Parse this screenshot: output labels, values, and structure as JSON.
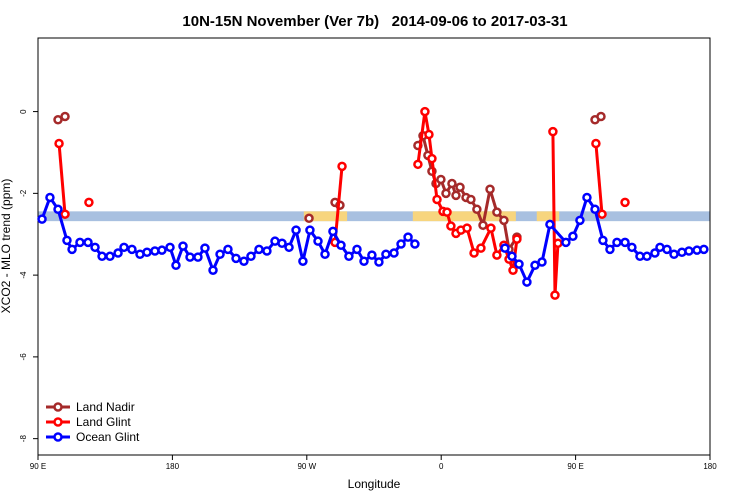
{
  "chart_data": {
    "type": "line",
    "title": "10N-15N November (Ver 7b)   2014-09-06 to 2017-03-31",
    "x_label": "Longitude",
    "y_label": "XCO2 - MLO trend (ppm)",
    "xlim": [
      90,
      540
    ],
    "xticks": [
      {
        "value": 90,
        "label": "90 E"
      },
      {
        "value": 180,
        "label": "180"
      },
      {
        "value": 270,
        "label": "90 W"
      },
      {
        "value": 360,
        "label": "0"
      },
      {
        "value": 450,
        "label": "90 E"
      },
      {
        "value": 540,
        "label": "180"
      }
    ],
    "ylim": [
      -8.4,
      1.8
    ],
    "yticks": [
      0,
      -2,
      -4,
      -6,
      -8
    ],
    "band": {
      "ylim": [
        -2.68,
        -2.44
      ],
      "color": "#a8c0e0",
      "highlight_color": "#f7d57e",
      "highlight_ranges": [
        [
          268,
          297
        ],
        [
          341,
          410
        ],
        [
          424,
          439
        ]
      ]
    },
    "legend": "lower left",
    "series": [
      {
        "name": "Land Nadir",
        "color": "#a52a2a",
        "x": [
          103.4,
          108.1,
          null,
          271.5,
          null,
          288.9,
          292.2,
          null,
          344.4,
          347.8,
          351.1,
          353.8,
          356.5,
          359.8,
          363.2,
          367.2,
          369.9,
          372.6,
          376.6,
          379.9,
          383.9,
          388.0,
          392.7,
          397.3,
          402.0,
          405.4,
          410.7,
          null,
          463.0,
          467.0
        ],
        "values": [
          -0.2,
          -0.12,
          null,
          -2.61,
          null,
          -2.22,
          -2.29,
          null,
          -0.83,
          -0.59,
          -1.07,
          -1.46,
          -1.76,
          -1.66,
          -2.0,
          -1.76,
          -2.05,
          -1.85,
          -2.1,
          -2.15,
          -2.39,
          -2.78,
          -1.9,
          -2.46,
          -2.66,
          -3.37,
          -3.07,
          null,
          -0.2,
          -0.12
        ]
      },
      {
        "name": "Land Glint",
        "color": "#ff0000",
        "x": [
          104.1,
          108.1,
          null,
          124.1,
          null,
          288.9,
          293.6,
          null,
          344.4,
          349.1,
          351.8,
          353.8,
          357.2,
          361.2,
          363.9,
          366.5,
          369.9,
          373.2,
          377.3,
          382.0,
          386.6,
          393.3,
          397.3,
          402.0,
          405.4,
          408.1,
          410.7,
          null,
          434.8,
          436.2,
          438.2,
          null,
          463.6,
          467.7,
          null,
          483.1
        ],
        "values": [
          -0.78,
          -2.51,
          null,
          -2.22,
          null,
          -3.2,
          -1.34,
          null,
          -1.29,
          0.0,
          -0.56,
          -1.15,
          -2.15,
          -2.44,
          -2.46,
          -2.8,
          -2.98,
          -2.9,
          -2.85,
          -3.46,
          -3.34,
          -2.85,
          -3.51,
          -3.27,
          -3.61,
          -3.88,
          -3.12,
          null,
          -0.49,
          -4.49,
          -3.22,
          null,
          -0.78,
          -2.51,
          null,
          -2.22
        ]
      },
      {
        "name": "Ocean Glint",
        "color": "#0000ff",
        "x": [
          92.7,
          98.0,
          103.4,
          109.4,
          112.8,
          118.1,
          123.5,
          128.2,
          132.9,
          138.2,
          143.6,
          147.6,
          152.9,
          158.3,
          163.0,
          168.3,
          173.0,
          178.4,
          182.4,
          187.1,
          191.8,
          197.1,
          201.8,
          207.2,
          211.9,
          217.2,
          222.6,
          227.9,
          232.6,
          238.0,
          243.3,
          248.7,
          253.4,
          258.1,
          262.8,
          267.4,
          272.1,
          277.5,
          282.2,
          287.5,
          292.9,
          298.2,
          303.6,
          308.3,
          313.6,
          318.3,
          323.0,
          328.4,
          333.1,
          337.8,
          342.4,
          null,
          402.7,
          407.4,
          412.1,
          417.4,
          422.8,
          427.5,
          432.8,
          443.5,
          448.2,
          452.9,
          457.6,
          463.0,
          468.3,
          473.0,
          477.7,
          483.1,
          487.7,
          493.1,
          497.8,
          503.1,
          506.5,
          511.2,
          515.9,
          521.2,
          525.9,
          531.3,
          535.9
        ],
        "values": [
          -2.63,
          -2.1,
          -2.39,
          -3.15,
          -3.37,
          -3.2,
          -3.2,
          -3.32,
          -3.54,
          -3.54,
          -3.46,
          -3.32,
          -3.37,
          -3.49,
          -3.44,
          -3.41,
          -3.39,
          -3.32,
          -3.76,
          -3.29,
          -3.56,
          -3.56,
          -3.34,
          -3.88,
          -3.49,
          -3.37,
          -3.59,
          -3.66,
          -3.54,
          -3.37,
          -3.41,
          -3.17,
          -3.22,
          -3.32,
          -2.9,
          -3.66,
          -2.9,
          -3.17,
          -3.49,
          -2.93,
          -3.27,
          -3.54,
          -3.37,
          -3.66,
          -3.51,
          -3.68,
          -3.49,
          -3.46,
          -3.24,
          -3.07,
          -3.24,
          null,
          -3.34,
          -3.54,
          -3.73,
          -4.17,
          -3.76,
          -3.68,
          -2.76,
          -3.2,
          -3.05,
          -2.66,
          -2.1,
          -2.39,
          -3.15,
          -3.37,
          -3.2,
          -3.2,
          -3.32,
          -3.54,
          -3.54,
          -3.46,
          -3.32,
          -3.37,
          -3.49,
          -3.44,
          -3.41,
          -3.39,
          -3.37
        ]
      }
    ]
  }
}
